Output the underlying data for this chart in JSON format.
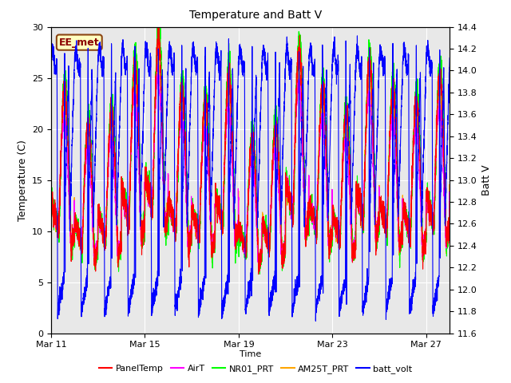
{
  "title": "Temperature and Batt V",
  "xlabel": "Time",
  "ylabel_left": "Temperature (C)",
  "ylabel_right": "Batt V",
  "annotation_text": "EE_met",
  "annotation_color": "#8B0000",
  "annotation_bg": "#FFFFC0",
  "annotation_border": "#8B4513",
  "ylim_left": [
    0,
    30
  ],
  "ylim_right": [
    11.6,
    14.4
  ],
  "background_color": "#E8E8E8",
  "figure_bg": "#FFFFFF",
  "yticks_left": [
    0,
    5,
    10,
    15,
    20,
    25,
    30
  ],
  "yticks_right": [
    11.6,
    11.8,
    12.0,
    12.2,
    12.4,
    12.6,
    12.8,
    13.0,
    13.2,
    13.4,
    13.6,
    13.8,
    14.0,
    14.2,
    14.4
  ],
  "xtick_labels": [
    "Mar 11",
    "Mar 15",
    "Mar 19",
    "Mar 23",
    "Mar 27"
  ],
  "legend_entries": [
    "PanelTemp",
    "AirT",
    "NR01_PRT",
    "AM25T_PRT",
    "batt_volt"
  ],
  "legend_colors": [
    "#FF0000",
    "#FF00FF",
    "#00FF00",
    "#FFA500",
    "#0000FF"
  ],
  "line_width": 0.8,
  "n_days": 17,
  "pts_per_day": 288
}
